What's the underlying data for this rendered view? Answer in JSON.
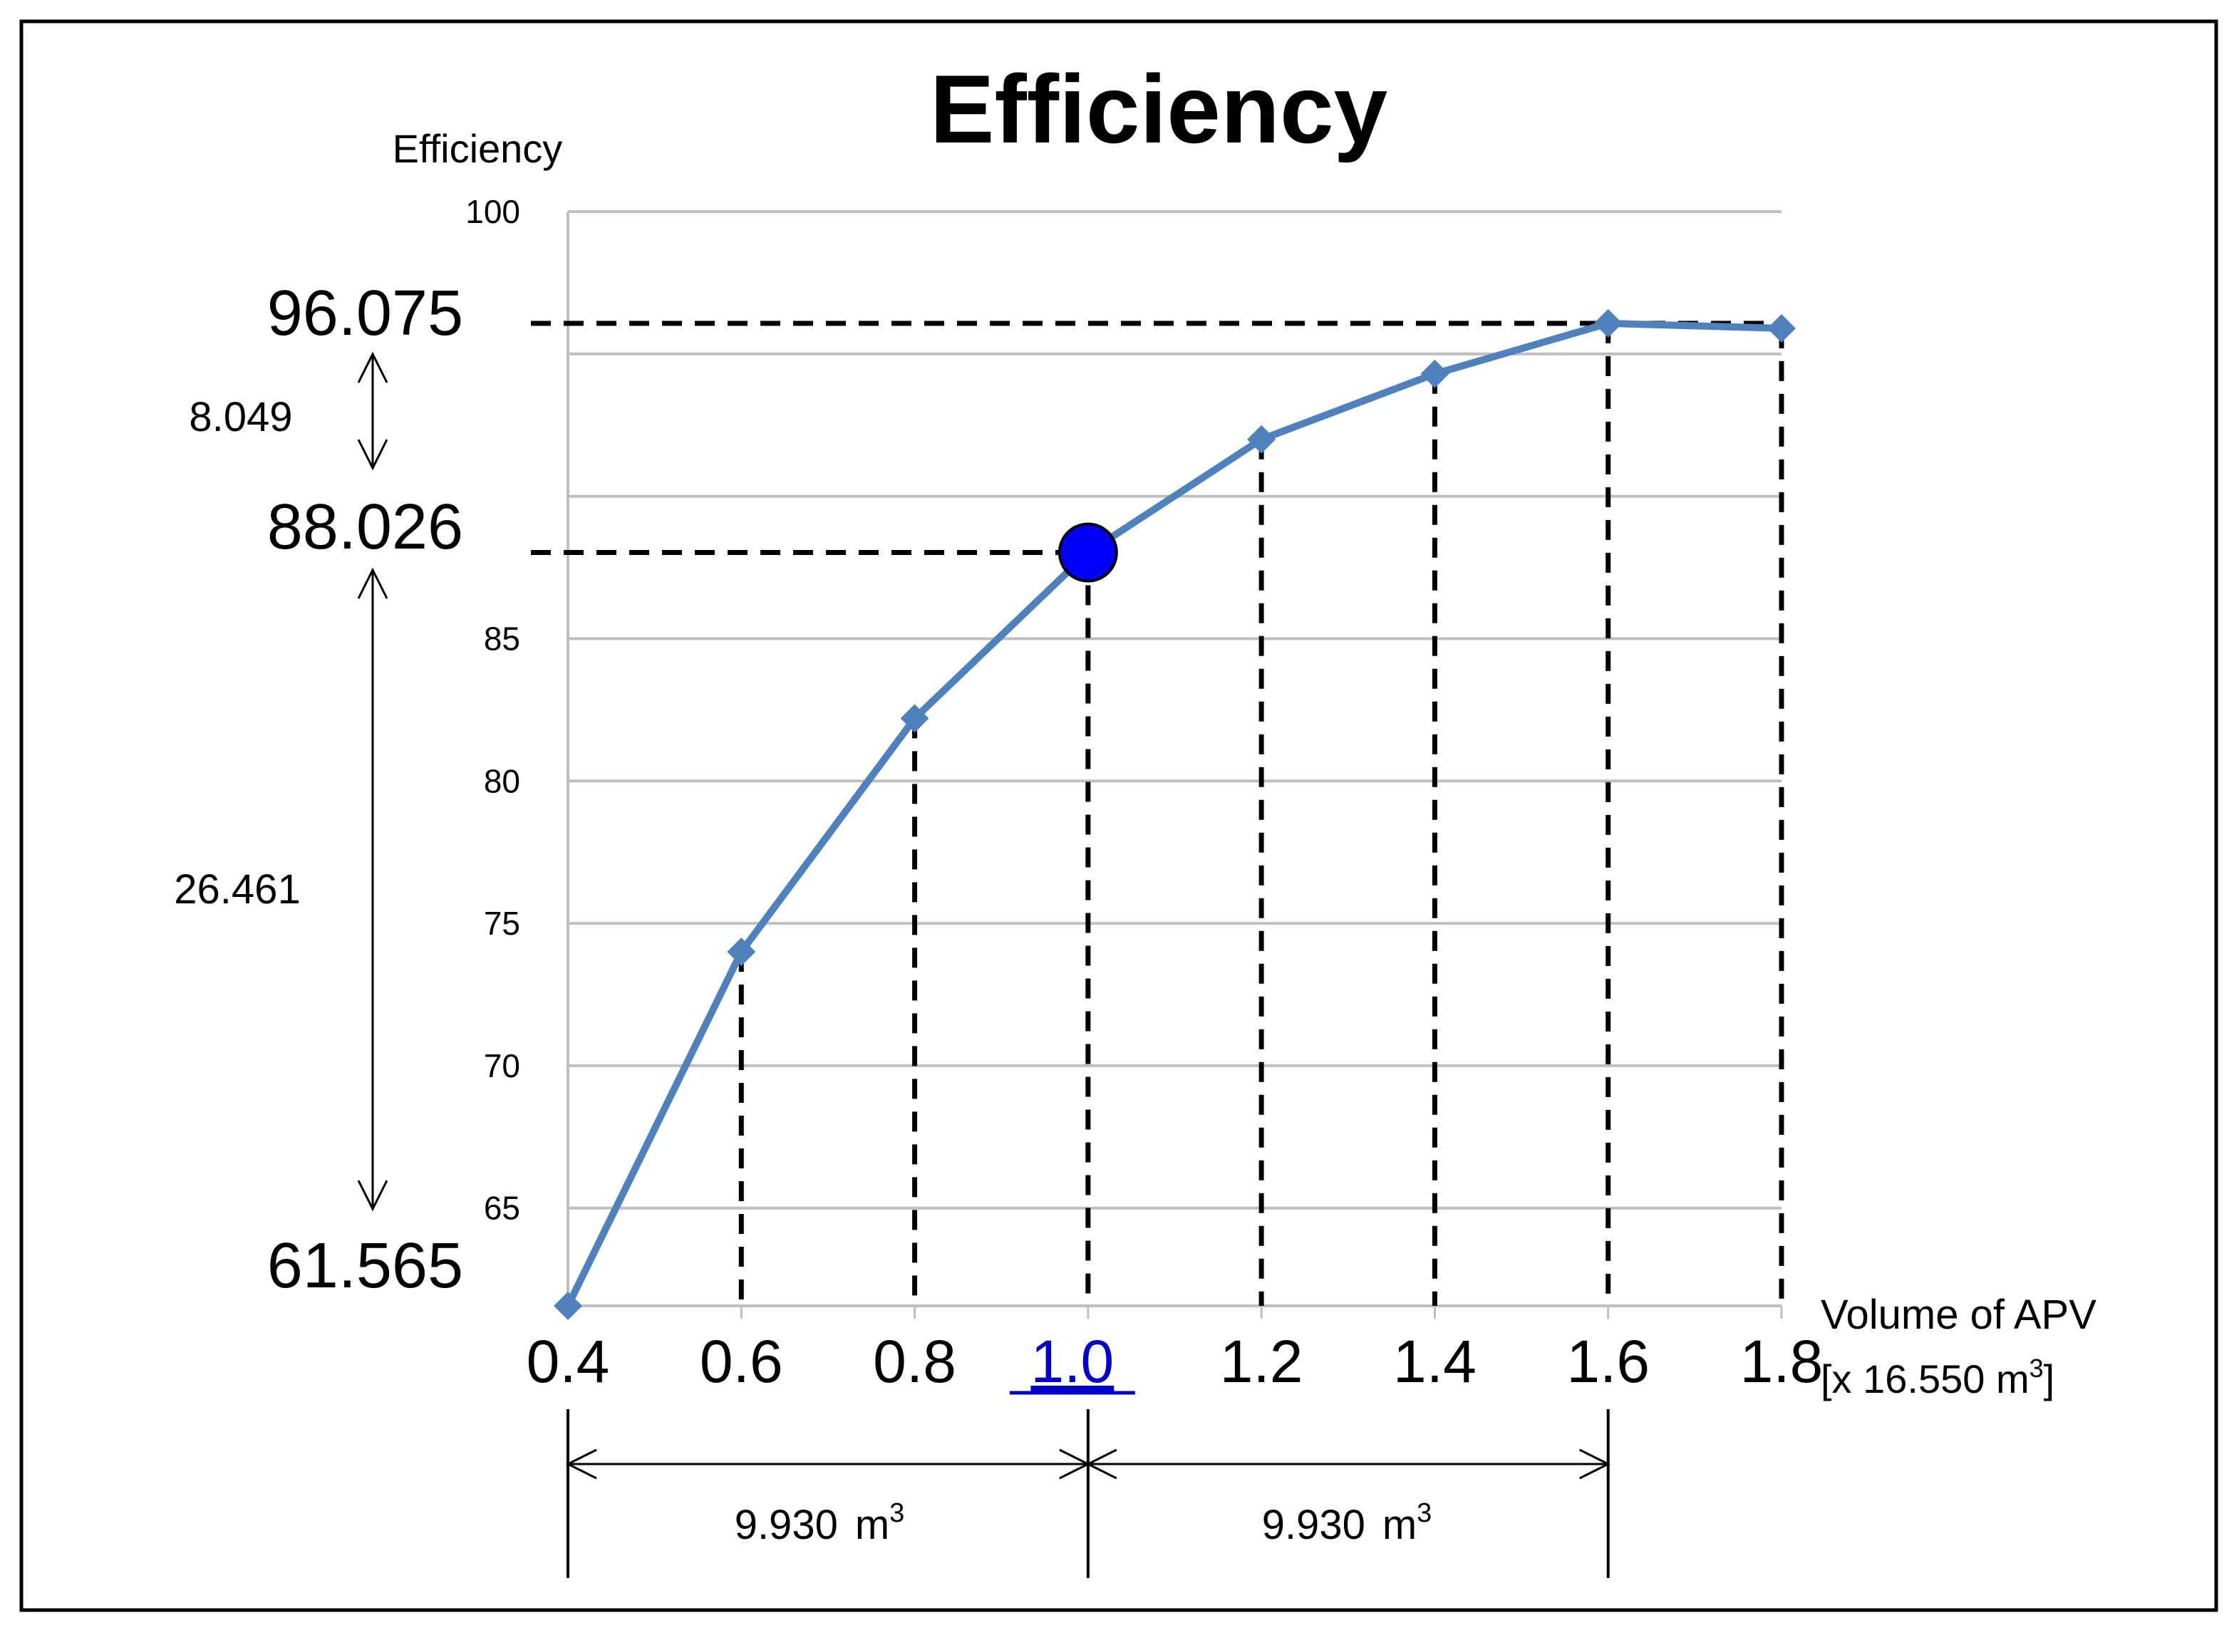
{
  "chart_data": {
    "type": "line",
    "title": "Efficiency",
    "ylabel": "Efficiency",
    "xlabel": "Volume of APV",
    "xlabel_unit": "[x 16.550 m",
    "xlabel_unit_sup": "3",
    "xlabel_unit_close": "]",
    "ylim": [
      61.565,
      100
    ],
    "y_ticks": [
      "100",
      "85",
      "80",
      "75",
      "70",
      "65"
    ],
    "x_ticks": [
      "0.4",
      "0.6",
      "0.8",
      "1.0",
      "1.2",
      "1.4",
      "1.6",
      "1.8"
    ],
    "highlight_tick": "1.0",
    "x": [
      0.4,
      0.6,
      0.8,
      1.0,
      1.2,
      1.4,
      1.6,
      1.8
    ],
    "series": [
      {
        "values": [
          61.565,
          74.0,
          82.2,
          88.026,
          92.0,
          94.3,
          96.075,
          95.9
        ]
      }
    ],
    "highlight_point": {
      "x": 1.0,
      "y": 88.026
    },
    "annotations": {
      "left_values": [
        "96.075",
        "88.026",
        "61.565"
      ],
      "diff_upper": "8.049",
      "diff_lower": "26.461",
      "volume_left": "9.930",
      "volume_right": "9.930",
      "volume_unit": "m",
      "volume_unit_sup": "3"
    },
    "grid": true
  },
  "colors": {
    "line": "#4f81bd",
    "highlight": "#0000ff",
    "highlight_tick": "#0000cc",
    "grid": "#bfbfbf",
    "border": "#000000"
  }
}
